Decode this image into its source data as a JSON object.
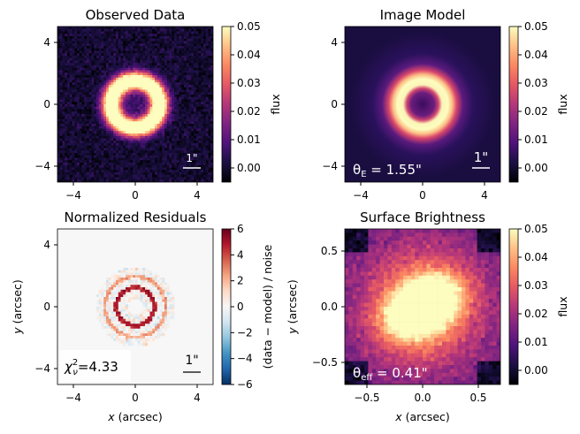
{
  "chart_data": [
    {
      "type": "heatmap",
      "title": "Observed Data",
      "colormap": "magma",
      "xlabel": "",
      "ylabel": "",
      "xlim": [
        -5,
        5
      ],
      "ylim": [
        -5,
        5
      ],
      "xticks": [
        "−4",
        "0",
        "4"
      ],
      "yticks": [
        "4",
        "0",
        "−4"
      ],
      "colorbar": {
        "label": "flux",
        "range": [
          -0.005,
          0.05
        ],
        "ticks": [
          "0.05",
          "0.04",
          "0.03",
          "0.02",
          "0.01",
          "0.00"
        ]
      },
      "scalebar_label": "1\"",
      "annotation": "",
      "ring": {
        "center": [
          0,
          0
        ],
        "radius_arcsec": 1.55,
        "peak_flux": 0.05,
        "noisy": true
      }
    },
    {
      "type": "heatmap",
      "title": "Image Model",
      "colormap": "magma",
      "xlabel": "",
      "ylabel": "",
      "xlim": [
        -5,
        5
      ],
      "ylim": [
        -5,
        5
      ],
      "xticks": [
        "−4",
        "0",
        "4"
      ],
      "yticks": [
        "4",
        "0",
        "−4"
      ],
      "colorbar": {
        "label": "flux",
        "range": [
          -0.005,
          0.05
        ],
        "ticks": [
          "0.05",
          "0.04",
          "0.03",
          "0.02",
          "0.01",
          "0.00"
        ]
      },
      "scalebar_label": "1\"",
      "annotation": "θE = 1.55\"",
      "ring": {
        "center": [
          0,
          0
        ],
        "radius_arcsec": 1.55,
        "peak_flux": 0.05,
        "noisy": false
      }
    },
    {
      "type": "heatmap",
      "title": "Normalized Residuals",
      "colormap": "RdBu_r",
      "xlabel": "x (arcsec)",
      "ylabel": "y (arcsec)",
      "xlim": [
        -5,
        5
      ],
      "ylim": [
        -5,
        5
      ],
      "xticks": [
        "−4",
        "0",
        "4"
      ],
      "yticks": [
        "4",
        "0",
        "−4"
      ],
      "colorbar": {
        "label": "(data − model) / noise",
        "range": [
          -6,
          6
        ],
        "ticks": [
          "6",
          "4",
          "2",
          "0",
          "−2",
          "−4",
          "−6"
        ]
      },
      "scalebar_label": "1\"",
      "annotation": "χ²ν=4.33",
      "chi2_nu": 4.33
    },
    {
      "type": "heatmap",
      "title": "Surface Brightness",
      "colormap": "magma",
      "xlabel": "x (arcsec)",
      "ylabel": "y (arcsec)",
      "xlim": [
        -0.7,
        0.7
      ],
      "ylim": [
        -0.7,
        0.7
      ],
      "xticks": [
        "−0.5",
        "0.0",
        "0.5"
      ],
      "yticks": [
        "0.5",
        "0.0",
        "−0.5"
      ],
      "colorbar": {
        "label": "flux",
        "range": [
          -0.005,
          0.05
        ],
        "ticks": [
          "0.05",
          "0.04",
          "0.03",
          "0.02",
          "0.01",
          "0.00"
        ]
      },
      "annotation": "θeff = 0.41\"",
      "theta_eff_arcsec": 0.41
    }
  ]
}
